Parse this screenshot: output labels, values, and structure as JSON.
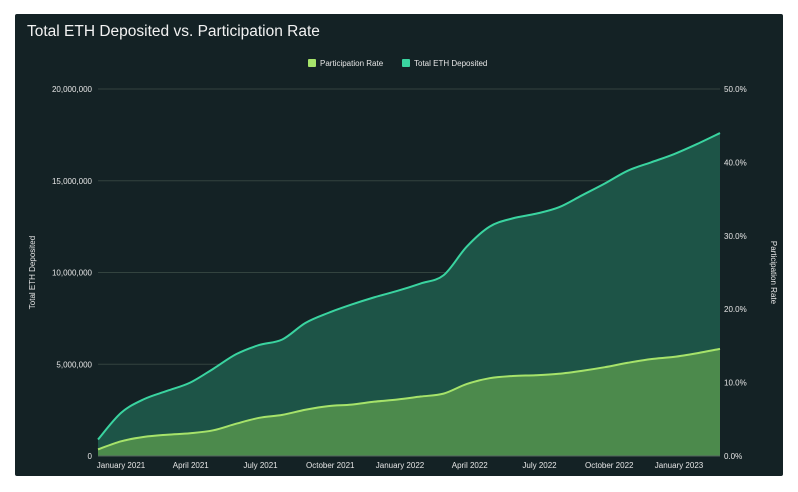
{
  "colors": {
    "background": "#142225",
    "eth_line": "#3ad4a0",
    "eth_fill": "#1d5447",
    "rate_line": "#a6e36a",
    "rate_fill": "#4c8a4c",
    "grid": "#33433f",
    "text": "#e6e6e6"
  },
  "chart_data": {
    "type": "area",
    "title": "Total ETH Deposited vs. Participation Rate",
    "legend_position": "top-center",
    "grid": true,
    "x_tick_labels": [
      "January 2021",
      "April 2021",
      "July 2021",
      "October 2021",
      "January 2022",
      "April 2022",
      "July 2022",
      "October 2022",
      "January 2023"
    ],
    "x": [
      "Dec 2020",
      "Jan 2021",
      "Feb 2021",
      "Mar 2021",
      "Apr 2021",
      "May 2021",
      "Jun 2021",
      "Jul 2021",
      "Aug 2021",
      "Sep 2021",
      "Oct 2021",
      "Nov 2021",
      "Dec 2021",
      "Jan 2022",
      "Feb 2022",
      "Mar 2022",
      "Apr 2022",
      "May 2022",
      "Jun 2022",
      "Jul 2022",
      "Aug 2022",
      "Sep 2022",
      "Oct 2022",
      "Nov 2022",
      "Dec 2022",
      "Jan 2023",
      "Feb 2023",
      "Mar 2023"
    ],
    "y_left": {
      "label": "Total ETH Deposited",
      "range": [
        0,
        20000000
      ],
      "ticks": [
        0,
        5000000,
        10000000,
        15000000,
        20000000
      ],
      "tick_labels": [
        "0",
        "5,000,000",
        "10,000,000",
        "15,000,000",
        "20,000,000"
      ]
    },
    "y_right": {
      "label": "Participation Rate",
      "range": [
        0,
        50
      ],
      "unit": "%",
      "ticks": [
        0,
        10,
        20,
        30,
        40,
        50
      ],
      "tick_labels": [
        "0.0%",
        "10.0%",
        "20.0%",
        "30.0%",
        "40.0%",
        "50.0%"
      ]
    },
    "series": [
      {
        "name": "Participation Rate",
        "axis": "right",
        "values": [
          0.9,
          2.0,
          2.6,
          2.9,
          3.1,
          3.5,
          4.4,
          5.2,
          5.6,
          6.3,
          6.8,
          7.0,
          7.4,
          7.7,
          8.1,
          8.5,
          9.8,
          10.6,
          10.9,
          11.0,
          11.2,
          11.6,
          12.1,
          12.7,
          13.2,
          13.5,
          14.0,
          14.6
        ]
      },
      {
        "name": "Total ETH Deposited",
        "axis": "left",
        "values": [
          900000,
          2350000,
          3100000,
          3550000,
          4000000,
          4750000,
          5550000,
          6050000,
          6350000,
          7250000,
          7800000,
          8250000,
          8650000,
          9000000,
          9400000,
          9850000,
          11400000,
          12500000,
          12950000,
          13200000,
          13550000,
          14200000,
          14850000,
          15550000,
          16000000,
          16450000,
          17000000,
          17600000
        ]
      }
    ]
  }
}
